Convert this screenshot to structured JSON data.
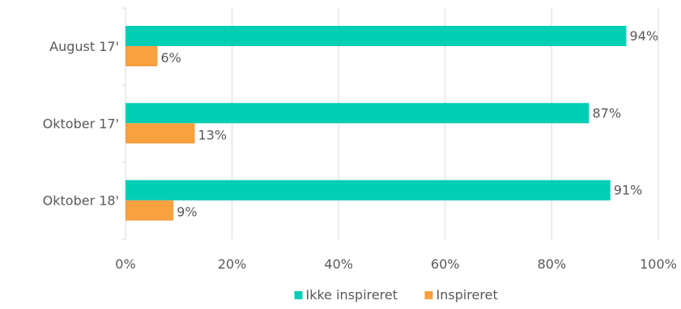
{
  "chart_data": {
    "type": "bar",
    "orientation": "horizontal",
    "categories": [
      "August 17'",
      "Oktober 17'",
      "Oktober 18'"
    ],
    "series": [
      {
        "name": "Ikke inspireret",
        "values": [
          94,
          87,
          91
        ],
        "labels": [
          "94%",
          "87%",
          "91%"
        ],
        "color": "#00CFB5"
      },
      {
        "name": "Inspireret",
        "values": [
          6,
          13,
          9
        ],
        "labels": [
          "6%",
          "13%",
          "9%"
        ],
        "color": "#F9A03F"
      }
    ],
    "xlim": [
      0,
      100
    ],
    "xticks": [
      0,
      20,
      40,
      60,
      80,
      100
    ],
    "xtick_labels": [
      "0%",
      "20%",
      "40%",
      "60%",
      "80%",
      "100%"
    ],
    "grid": "vertical",
    "legend": "bottom-center",
    "title": "",
    "xlabel": "",
    "ylabel": ""
  }
}
